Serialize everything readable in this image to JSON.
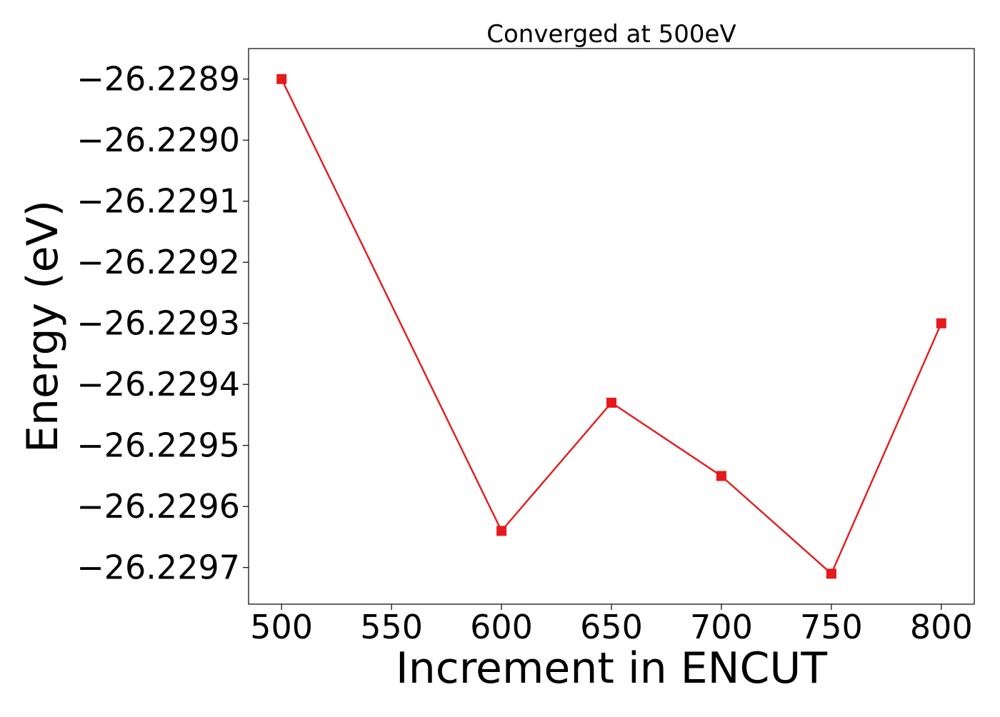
{
  "chart_data": {
    "type": "line",
    "title": "Converged at 500eV",
    "xlabel": "Increment in ENCUT",
    "ylabel": "Energy (eV)",
    "x": [
      500,
      600,
      650,
      700,
      750,
      800
    ],
    "series": [
      {
        "values": [
          -26.2289,
          -26.22964,
          -26.22943,
          -26.22955,
          -26.22971,
          -26.2293
        ],
        "color": "#e41a1c",
        "marker": "square"
      }
    ],
    "xlim": [
      485,
      815
    ],
    "ylim": [
      -26.22976,
      -26.22885
    ],
    "x_ticks": [
      500,
      550,
      600,
      650,
      700,
      750,
      800
    ],
    "x_tick_labels": [
      "500",
      "550",
      "600",
      "650",
      "700",
      "750",
      "800"
    ],
    "y_ticks": [
      -26.2289,
      -26.229,
      -26.2291,
      -26.2292,
      -26.2293,
      -26.2294,
      -26.2295,
      -26.2296,
      -26.2297
    ],
    "y_tick_labels": [
      "−26.2289",
      "−26.2290",
      "−26.2291",
      "−26.2292",
      "−26.2293",
      "−26.2294",
      "−26.2295",
      "−26.2296",
      "−26.2297"
    ],
    "grid": false,
    "legend": "none"
  }
}
